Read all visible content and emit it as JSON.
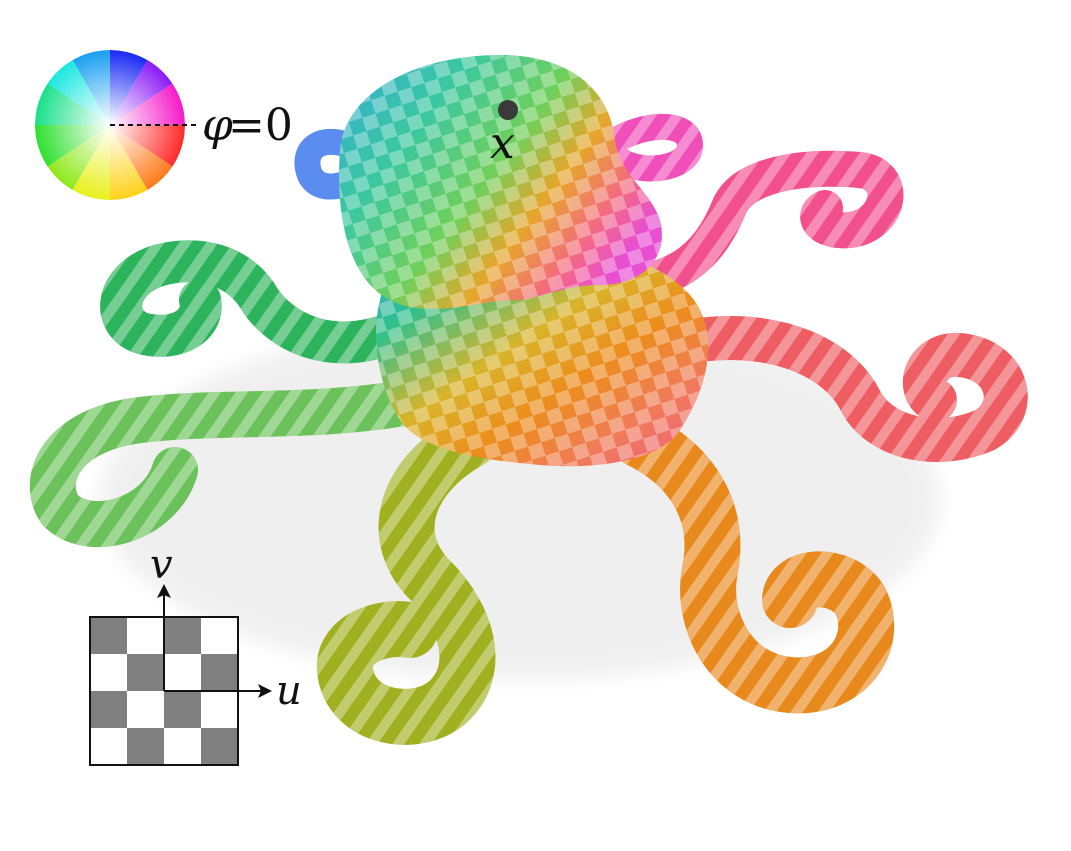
{
  "labels": {
    "phi": "φ",
    "equals": "=0",
    "point": "x",
    "u_axis": "u",
    "v_axis": "v"
  },
  "colors": {
    "background": "#ffffff",
    "checker_dark": "#808080",
    "checker_light": "#ffffff",
    "point_marker": "#3a3a3a",
    "tentacle_blue": "#5b8cf0",
    "tentacle_magenta": "#f04fb9",
    "tentacle_pink": "#f2508c",
    "tentacle_red": "#ee5d62",
    "tentacle_orange": "#e8891e",
    "tentacle_olive": "#a0b020",
    "tentacle_lightgreen": "#6cc25a",
    "tentacle_green": "#2db35c"
  },
  "icons": [
    "color-wheel-icon",
    "uv-checker-icon",
    "octopus-mesh-render"
  ]
}
